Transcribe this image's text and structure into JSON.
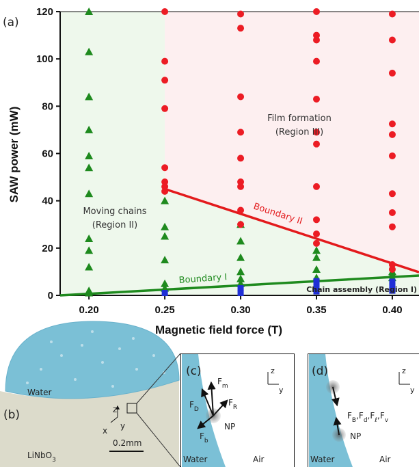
{
  "chart_data": {
    "type": "scatter",
    "panel_label": "(a)",
    "x_label": "Magnetic field force (T)",
    "y_label": "SAW power (mW)",
    "xlim": [
      0.181,
      0.4176
    ],
    "ylim": [
      0,
      120
    ],
    "xticks": [
      {
        "value": 0.2,
        "label": "0.20"
      },
      {
        "value": 0.25,
        "label": "0.25"
      },
      {
        "value": 0.3,
        "label": "0.30"
      },
      {
        "value": 0.35,
        "label": "0.35"
      },
      {
        "value": 0.4,
        "label": "0.40"
      }
    ],
    "yticks": [
      0,
      20,
      40,
      60,
      80,
      100,
      120
    ],
    "shading": {
      "chains": "#eef8ec",
      "film": "#fdeff0"
    },
    "series": [
      {
        "marker": "triangle",
        "color": "#1e8a1e",
        "x": [
          0.2,
          0.2,
          0.2,
          0.2,
          0.2,
          0.2,
          0.2,
          0.2,
          0.2,
          0.2,
          0.2,
          0.2,
          0.25,
          0.25,
          0.25,
          0.25,
          0.25,
          0.25,
          0.3,
          0.3,
          0.3,
          0.3,
          0.3,
          0.3,
          0.35,
          0.35,
          0.35,
          0.35,
          0.4,
          0.4,
          0.4
        ],
        "values": [
          120,
          103,
          84,
          70,
          59,
          54,
          43,
          24,
          19,
          12,
          2,
          1,
          40,
          29,
          25,
          15,
          5,
          3,
          30,
          23,
          16,
          10,
          7,
          5,
          19,
          16,
          11,
          7.5,
          10,
          9,
          7.5
        ]
      },
      {
        "marker": "circle",
        "color": "#ec1c24",
        "x": [
          0.25,
          0.25,
          0.25,
          0.25,
          0.25,
          0.25,
          0.25,
          0.25,
          0.3,
          0.3,
          0.3,
          0.3,
          0.3,
          0.3,
          0.3,
          0.3,
          0.3,
          0.35,
          0.35,
          0.35,
          0.35,
          0.35,
          0.35,
          0.35,
          0.35,
          0.35,
          0.35,
          0.35,
          0.4,
          0.4,
          0.4,
          0.4,
          0.4,
          0.4,
          0.4,
          0.4,
          0.4,
          0.4,
          0.4
        ],
        "values": [
          120,
          99,
          91,
          79,
          54,
          48,
          46,
          44,
          119,
          113,
          84,
          69,
          58,
          48,
          46,
          36,
          30,
          120,
          110,
          108,
          99,
          83,
          69,
          64,
          46,
          32,
          26,
          22,
          119,
          108,
          94,
          72.5,
          68,
          59,
          43,
          35,
          29,
          13,
          11
        ]
      },
      {
        "marker": "square",
        "color": "#1f2fd6",
        "x": [
          0.25,
          0.3,
          0.3,
          0.35,
          0.35,
          0.35,
          0.35,
          0.4,
          0.4,
          0.4
        ],
        "values": [
          1,
          3,
          1,
          6,
          4.6,
          3.2,
          1.7,
          5.8,
          4,
          2
        ]
      }
    ],
    "lines": [
      {
        "name": "Boundary I",
        "color": "#1e8a1e",
        "x": [
          0.181,
          0.4176
        ],
        "values": [
          0,
          8.4
        ]
      },
      {
        "name": "Boundary II",
        "color": "#e31a1c",
        "x": [
          0.25,
          0.4176
        ],
        "values": [
          45,
          9.8
        ]
      }
    ],
    "regions": {
      "chains": [
        "Moving chains",
        "(Region II)"
      ],
      "film": [
        "Film formation",
        "(Region III)"
      ],
      "assembly": "Chain assembly (Region I)"
    }
  },
  "diagram": {
    "b": {
      "label": "(b)",
      "water": "Water",
      "substrate": {
        "main": "LiNbO",
        "sub": "3"
      },
      "z": "z",
      "x": "x",
      "y": "y",
      "scale": "0.2mm"
    },
    "c": {
      "label": "(c)",
      "forces": [
        {
          "main": "F",
          "sub": "m"
        },
        {
          "main": "F",
          "sub": "R"
        },
        {
          "main": "F",
          "sub": "D"
        },
        {
          "main": "F",
          "sub": "b"
        }
      ],
      "np": "NP",
      "water": "Water",
      "air": "Air",
      "z": "z",
      "y": "y"
    },
    "d": {
      "label": "(d)",
      "forces": [
        {
          "main": "F",
          "sub": "B"
        },
        {
          "main": "F",
          "sub": "d"
        },
        {
          "main": "F",
          "sub": "ℓ"
        },
        {
          "main": "F",
          "sub": "v"
        }
      ],
      "separator": ",",
      "np": "NP",
      "water": "Water",
      "air": "Air",
      "z": "z",
      "y": "y"
    }
  }
}
